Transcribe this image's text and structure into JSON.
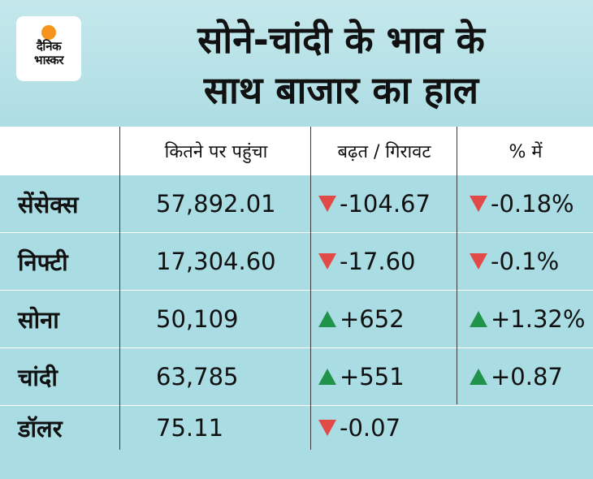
{
  "brand": {
    "line1": "दैनिक",
    "line2": "भास्कर"
  },
  "title": {
    "line1": "सोने-चांदी के भाव के",
    "line2": "साथ बाजार का हाल"
  },
  "headers": {
    "value": "कितने पर पहुंचा",
    "change": "बढ़त / गिरावट",
    "percent": "% में"
  },
  "colors": {
    "up": "#20934a",
    "down": "#e24a48",
    "background": "#a9dce3"
  },
  "rows": [
    {
      "name": "सेंसेक्स",
      "value": "57,892.01",
      "change": "-104.67",
      "change_dir": "down",
      "percent": "-0.18%",
      "percent_dir": "down"
    },
    {
      "name": "निफ्टी",
      "value": "17,304.60",
      "change": "-17.60",
      "change_dir": "down",
      "percent": "-0.1%",
      "percent_dir": "down"
    },
    {
      "name": "सोना",
      "value": "50,109",
      "change": "+652",
      "change_dir": "up",
      "percent": "+1.32%",
      "percent_dir": "up"
    },
    {
      "name": "चांदी",
      "value": "63,785",
      "change": "+551",
      "change_dir": "up",
      "percent": "+0.87",
      "percent_dir": "up"
    },
    {
      "name": "डॉलर",
      "value": "75.11",
      "change": "-0.07",
      "change_dir": "down",
      "percent": "",
      "percent_dir": ""
    }
  ]
}
